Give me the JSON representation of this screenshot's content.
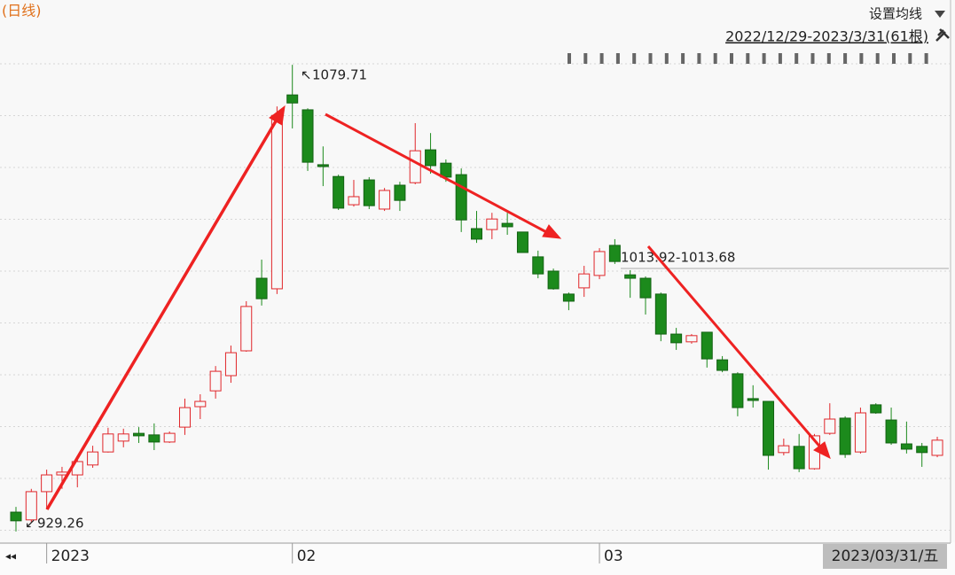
{
  "chart_data": {
    "type": "candlestick",
    "title": "(日线)",
    "menu": "设置均线",
    "range_label": "2022/12/29-2023/3/31(61根)",
    "cursor_date": "2023/03/31/五",
    "range_annotation": "1013.92-1013.68",
    "up_color": "#e0262a",
    "down_color": "#1c8a1c",
    "ylim": [
      925.8,
      1100.6
    ],
    "categories": [
      null,
      null,
      "2023",
      null,
      null,
      null,
      null,
      null,
      null,
      null,
      null,
      null,
      null,
      null,
      null,
      null,
      null,
      null,
      "02",
      null,
      null,
      null,
      null,
      null,
      null,
      null,
      null,
      null,
      null,
      null,
      null,
      null,
      null,
      null,
      null,
      null,
      null,
      null,
      "03",
      null,
      null,
      null,
      null,
      null,
      null,
      null,
      null,
      null,
      null,
      null,
      null,
      null,
      null,
      null,
      null,
      null,
      null,
      null,
      null,
      null,
      null
    ],
    "open": [
      935.5,
      933.0,
      942.1,
      947.5,
      947.5,
      950.7,
      954.9,
      958.4,
      960.9,
      960.4,
      958.1,
      962.9,
      969.5,
      974.6,
      979.5,
      987.5,
      1010.9,
      1007.5,
      1070.0,
      1065.2,
      1047.5,
      1043.7,
      1034.6,
      1042.6,
      1033.2,
      1040.9,
      1041.7,
      1052.3,
      1048.0,
      1044.3,
      1026.9,
      1026.6,
      1028.6,
      1025.8,
      1017.8,
      1013.2,
      1005.8,
      1007.8,
      1011.8,
      1021.5,
      1012.0,
      1010.9,
      1005.8,
      992.9,
      990.4,
      993.5,
      984.6,
      980.1,
      972.1,
      971.2,
      954.7,
      956.7,
      949.5,
      960.9,
      965.8,
      954.9,
      970.1,
      965.2,
      957.5,
      956.7,
      953.8
    ],
    "high": [
      937.2,
      943.0,
      949.2,
      950.1,
      953.5,
      956.9,
      962.7,
      962.4,
      962.9,
      964.1,
      961.5,
      972.1,
      973.5,
      982.6,
      989.2,
      1003.5,
      1016.9,
      1066.3,
      1079.71,
      1065.7,
      1053.4,
      1044.3,
      1042.6,
      1043.5,
      1040.0,
      1042.0,
      1060.9,
      1057.7,
      1049.2,
      1046.3,
      1032.6,
      1032.0,
      1032.0,
      1025.8,
      1019.8,
      1014.0,
      1006.3,
      1014.9,
      1020.6,
      1023.5,
      1013.5,
      1011.5,
      1006.3,
      994.9,
      992.9,
      993.5,
      985.8,
      980.6,
      976.4,
      971.2,
      959.2,
      960.7,
      960.7,
      970.6,
      966.4,
      969.2,
      970.6,
      969.2,
      964.7,
      957.8,
      959.8
    ],
    "low": [
      929.26,
      932.1,
      936.4,
      943.0,
      943.5,
      949.8,
      954.7,
      956.4,
      957.8,
      955.5,
      957.8,
      960.4,
      965.5,
      972.1,
      977.2,
      987.2,
      1002.1,
      1005.8,
      1059.2,
      1045.5,
      1040.6,
      1032.9,
      1034.0,
      1033.2,
      1032.6,
      1032.6,
      1041.2,
      1044.6,
      1042.0,
      1025.8,
      1022.3,
      1023.5,
      1024.9,
      1019.2,
      1010.9,
      1007.2,
      1000.6,
      1004.9,
      1010.6,
      1015.5,
      1004.6,
      999.2,
      990.6,
      987.8,
      989.8,
      982.1,
      980.6,
      966.4,
      969.2,
      949.2,
      953.8,
      948.4,
      949.2,
      960.4,
      953.0,
      954.4,
      967.2,
      957.2,
      954.4,
      950.1,
      953.2
    ],
    "close": [
      932.7,
      942.1,
      947.5,
      948.4,
      951.8,
      954.9,
      960.7,
      960.7,
      960.1,
      958.1,
      960.9,
      969.2,
      971.2,
      980.9,
      986.9,
      1001.8,
      1004.3,
      1063.4,
      1067.4,
      1048.3,
      1046.9,
      1033.5,
      1037.2,
      1034.3,
      1039.2,
      1036.0,
      1052.0,
      1047.2,
      1043.5,
      1029.7,
      1023.5,
      1030.0,
      1027.5,
      1019.2,
      1012.3,
      1007.5,
      1003.5,
      1012.3,
      1019.5,
      1016.3,
      1010.9,
      1004.6,
      992.9,
      990.1,
      992.4,
      984.9,
      981.2,
      969.2,
      971.5,
      953.8,
      956.9,
      949.5,
      960.1,
      965.5,
      954.1,
      967.5,
      967.5,
      957.8,
      955.8,
      954.7,
      958.7
    ]
  }
}
